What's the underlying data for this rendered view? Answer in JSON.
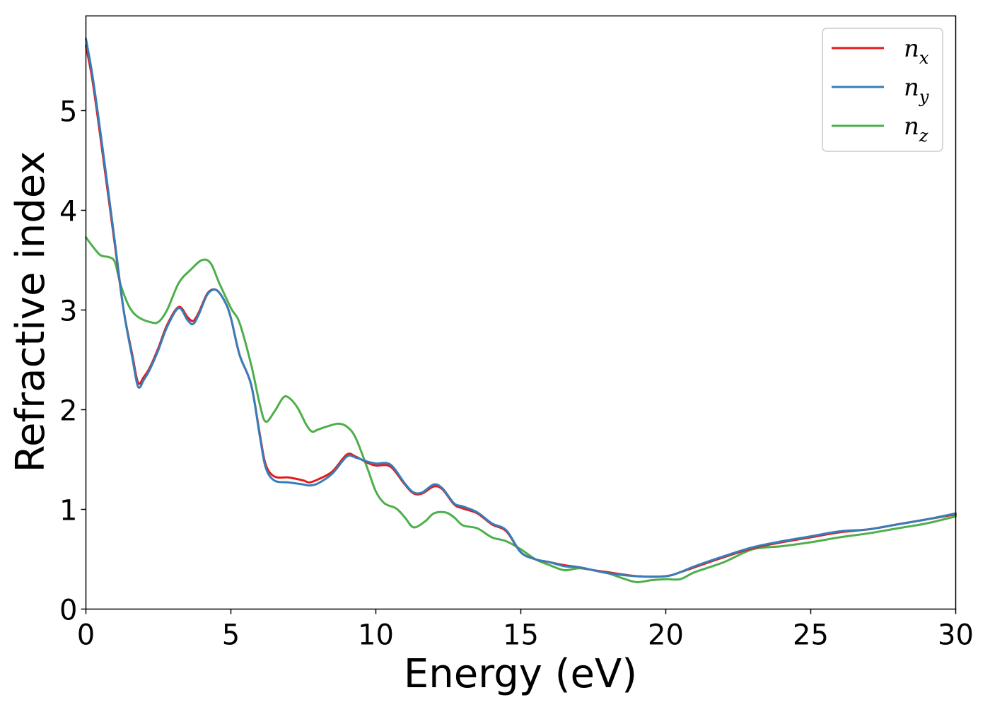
{
  "chart_data": {
    "type": "line",
    "title": "",
    "xlabel": "Energy (eV)",
    "ylabel": "Refractive index",
    "xlim": [
      0,
      30
    ],
    "ylim": [
      0,
      5.95
    ],
    "xticks": [
      "0",
      "5",
      "10",
      "15",
      "20",
      "25",
      "30"
    ],
    "yticks": [
      "0",
      "1",
      "2",
      "3",
      "4",
      "5"
    ],
    "grid": false,
    "legend_position": "top-right",
    "series": [
      {
        "name": "n",
        "subscript": "x",
        "color": "#e41a1c",
        "x": [
          0,
          0.2,
          0.4,
          0.7,
          1.0,
          1.3,
          1.6,
          1.8,
          2.0,
          2.2,
          2.5,
          2.8,
          3.2,
          3.5,
          3.7,
          3.9,
          4.2,
          4.5,
          4.8,
          5.0,
          5.3,
          5.7,
          6.0,
          6.2,
          6.5,
          7.0,
          7.5,
          7.7,
          8.0,
          8.5,
          9.0,
          9.3,
          9.7,
          10.0,
          10.5,
          11.0,
          11.3,
          11.6,
          12.0,
          12.3,
          12.7,
          13.0,
          13.5,
          14.0,
          14.5,
          15.0,
          15.5,
          16.0,
          16.5,
          17.0,
          17.5,
          18.0,
          19.0,
          20.0,
          20.5,
          21.0,
          22.0,
          23.0,
          24.0,
          25.0,
          26.0,
          27.0,
          28.0,
          29.0,
          30.0
        ],
        "y": [
          5.65,
          5.35,
          4.95,
          4.3,
          3.65,
          3.0,
          2.55,
          2.27,
          2.33,
          2.42,
          2.62,
          2.85,
          3.03,
          2.93,
          2.89,
          2.98,
          3.17,
          3.2,
          3.08,
          2.92,
          2.55,
          2.25,
          1.75,
          1.45,
          1.33,
          1.32,
          1.29,
          1.27,
          1.3,
          1.38,
          1.55,
          1.53,
          1.47,
          1.44,
          1.43,
          1.25,
          1.16,
          1.16,
          1.23,
          1.2,
          1.05,
          1.01,
          0.96,
          0.85,
          0.78,
          0.57,
          0.5,
          0.47,
          0.44,
          0.42,
          0.39,
          0.37,
          0.33,
          0.33,
          0.37,
          0.42,
          0.52,
          0.61,
          0.67,
          0.72,
          0.77,
          0.8,
          0.85,
          0.9,
          0.95
        ]
      },
      {
        "name": "n",
        "subscript": "y",
        "color": "#377eb8",
        "x": [
          0,
          0.2,
          0.4,
          0.7,
          1.0,
          1.3,
          1.6,
          1.8,
          2.0,
          2.2,
          2.5,
          2.8,
          3.2,
          3.5,
          3.7,
          3.9,
          4.2,
          4.5,
          4.8,
          5.0,
          5.3,
          5.7,
          6.0,
          6.2,
          6.5,
          7.0,
          7.5,
          7.7,
          8.0,
          8.5,
          9.0,
          9.3,
          9.7,
          10.0,
          10.5,
          11.0,
          11.3,
          11.6,
          12.0,
          12.3,
          12.7,
          13.0,
          13.5,
          14.0,
          14.5,
          15.0,
          15.5,
          16.0,
          16.5,
          17.0,
          17.5,
          18.0,
          19.0,
          20.0,
          20.5,
          21.0,
          22.0,
          23.0,
          24.0,
          25.0,
          26.0,
          27.0,
          28.0,
          29.0,
          30.0
        ],
        "y": [
          5.72,
          5.4,
          5.0,
          4.35,
          3.68,
          3.0,
          2.52,
          2.23,
          2.3,
          2.4,
          2.6,
          2.83,
          3.02,
          2.9,
          2.86,
          2.96,
          3.16,
          3.2,
          3.08,
          2.92,
          2.55,
          2.25,
          1.73,
          1.42,
          1.29,
          1.27,
          1.25,
          1.24,
          1.26,
          1.36,
          1.53,
          1.52,
          1.48,
          1.46,
          1.45,
          1.26,
          1.17,
          1.17,
          1.25,
          1.21,
          1.06,
          1.03,
          0.97,
          0.86,
          0.79,
          0.57,
          0.5,
          0.47,
          0.43,
          0.42,
          0.39,
          0.36,
          0.33,
          0.33,
          0.37,
          0.43,
          0.53,
          0.62,
          0.68,
          0.73,
          0.78,
          0.8,
          0.85,
          0.9,
          0.96
        ]
      },
      {
        "name": "n",
        "subscript": "z",
        "color": "#4daf4a",
        "x": [
          0,
          0.2,
          0.5,
          0.8,
          1.0,
          1.2,
          1.5,
          1.8,
          2.2,
          2.5,
          2.8,
          3.2,
          3.6,
          4.0,
          4.3,
          4.6,
          5.0,
          5.3,
          5.7,
          6.0,
          6.2,
          6.5,
          6.8,
          7.0,
          7.3,
          7.6,
          7.8,
          8.0,
          8.3,
          8.7,
          9.0,
          9.3,
          9.7,
          10.0,
          10.3,
          10.7,
          11.0,
          11.3,
          11.7,
          12.0,
          12.4,
          12.7,
          13.0,
          13.5,
          14.0,
          14.5,
          15.0,
          15.5,
          16.0,
          16.5,
          17.0,
          17.5,
          18.0,
          18.5,
          19.0,
          19.5,
          20.0,
          20.5,
          21.0,
          22.0,
          23.0,
          24.0,
          25.0,
          26.0,
          27.0,
          28.0,
          29.0,
          30.0
        ],
        "y": [
          3.73,
          3.65,
          3.55,
          3.53,
          3.48,
          3.25,
          3.03,
          2.93,
          2.88,
          2.88,
          3.0,
          3.27,
          3.4,
          3.5,
          3.47,
          3.27,
          3.02,
          2.87,
          2.45,
          2.05,
          1.88,
          1.98,
          2.12,
          2.12,
          2.02,
          1.85,
          1.78,
          1.8,
          1.83,
          1.86,
          1.83,
          1.72,
          1.42,
          1.18,
          1.06,
          1.01,
          0.92,
          0.82,
          0.88,
          0.96,
          0.97,
          0.92,
          0.84,
          0.81,
          0.72,
          0.68,
          0.6,
          0.5,
          0.44,
          0.39,
          0.41,
          0.39,
          0.36,
          0.31,
          0.27,
          0.29,
          0.3,
          0.3,
          0.37,
          0.47,
          0.6,
          0.63,
          0.67,
          0.72,
          0.76,
          0.81,
          0.86,
          0.93
        ]
      }
    ]
  }
}
